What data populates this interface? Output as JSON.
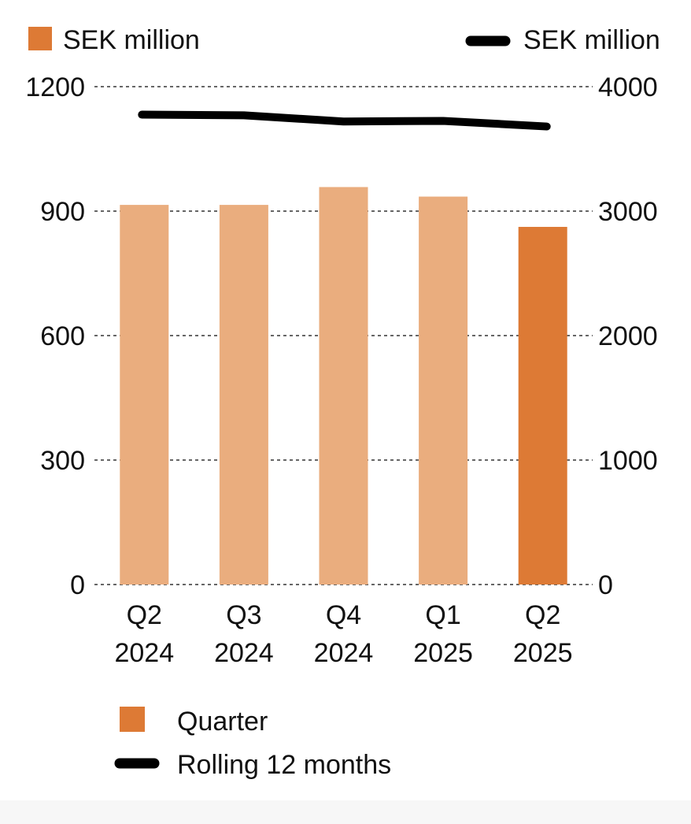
{
  "colors": {
    "bar_highlight": "#DD7A35",
    "bar_light": "#EAAD7E",
    "line": "#000000",
    "grid": "#333333",
    "text": "#111111"
  },
  "chart_data": {
    "type": "bar",
    "categories": [
      [
        "Q2",
        "2024"
      ],
      [
        "Q3",
        "2024"
      ],
      [
        "Q4",
        "2024"
      ],
      [
        "Q1",
        "2025"
      ],
      [
        "Q2",
        "2025"
      ]
    ],
    "series": [
      {
        "name": "Quarter",
        "type": "bar",
        "axis": "left",
        "values": [
          915,
          915,
          958,
          935,
          862
        ],
        "highlight_index": 4
      },
      {
        "name": "Rolling 12 months",
        "type": "line",
        "axis": "right",
        "values": [
          3775,
          3770,
          3720,
          3725,
          3680
        ]
      }
    ],
    "left_axis": {
      "label": "SEK million",
      "ylim": [
        0,
        1200
      ],
      "ticks": [
        "0",
        "300",
        "600",
        "900",
        "1200"
      ]
    },
    "right_axis": {
      "label": "SEK million",
      "ylim": [
        0,
        4000
      ],
      "ticks": [
        "0",
        "1000",
        "2000",
        "3000",
        "4000"
      ]
    },
    "grid": true,
    "legend_position": "bottom-left",
    "legend": [
      {
        "label": "Quarter",
        "kind": "square"
      },
      {
        "label": "Rolling 12 months",
        "kind": "line"
      }
    ]
  }
}
